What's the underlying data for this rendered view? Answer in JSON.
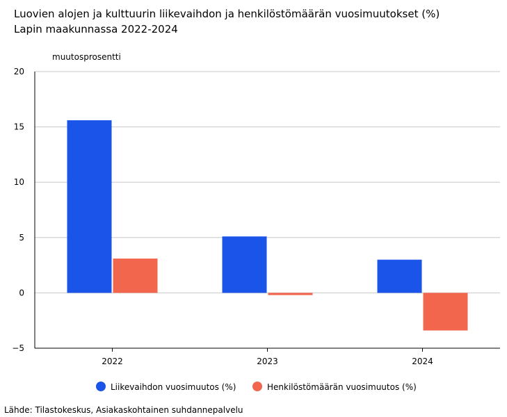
{
  "title_line1": "Luovien alojen ja kulttuurin liikevaihdon ja henkilöstömäärän vuosimuutokset (%)",
  "title_line2": "Lapin maakunnassa 2022-2024",
  "source": "Lähde: Tilastokeskus, Asiakaskohtainen suhdannepalvelu",
  "chart_data": {
    "type": "bar",
    "ylabel": "muutosprosentti",
    "categories": [
      "2022",
      "2023",
      "2024"
    ],
    "series": [
      {
        "name": "Liikevaihdon vuosimuutos (%)",
        "color": "#1a54e8",
        "values": [
          15.6,
          5.1,
          3.0
        ]
      },
      {
        "name": "Henkilöstömäärän vuosimuutos (%)",
        "color": "#f2664d",
        "values": [
          3.1,
          -0.2,
          -3.4
        ]
      }
    ],
    "ylim": [
      -5,
      20
    ],
    "yticks": [
      20,
      15,
      10,
      5,
      0,
      -5
    ],
    "grid": true,
    "legend": "bottom"
  }
}
